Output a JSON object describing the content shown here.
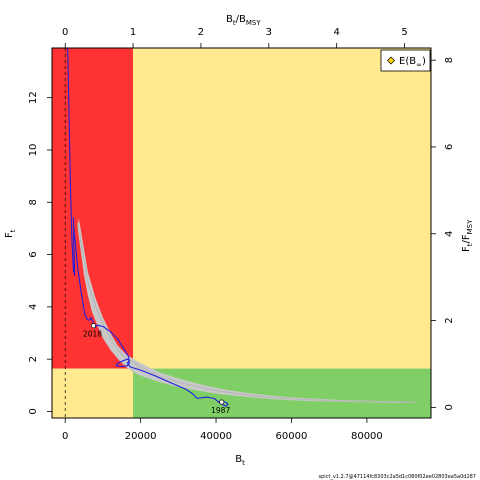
{
  "chart_data": {
    "type": "line",
    "title": "",
    "xlabel": "B",
    "xlabel_sub": "t",
    "ylabel": "F",
    "ylabel_sub": "t",
    "top_xlabel": "B",
    "top_xlabel_sub": "t",
    "top_xlabel_div": "/B",
    "top_xlabel_div_sub": "MSY",
    "right_ylabel": "F",
    "right_ylabel_sub": "t",
    "right_ylabel_div": "/F",
    "right_ylabel_div_sub": "MSY",
    "xlim": [
      -3500,
      97000
    ],
    "ylim": [
      -0.25,
      13.9
    ],
    "top_xlim": [
      -0.195,
      5.39
    ],
    "right_ylim": [
      -0.245,
      8.28
    ],
    "grid": false,
    "bmsy": 17980,
    "fmsy": 1.64,
    "x_ticks": [
      0,
      20000,
      40000,
      60000,
      80000
    ],
    "x_tick_labels": [
      "0",
      "20000",
      "40000",
      "60000",
      "80000"
    ],
    "y_ticks": [
      0,
      2,
      4,
      6,
      8,
      10,
      12
    ],
    "y_tick_labels": [
      "0",
      "2",
      "4",
      "6",
      "8",
      "10",
      "12"
    ],
    "top_x_ticks": [
      0,
      1,
      2,
      3,
      4,
      5
    ],
    "top_x_tick_labels": [
      "0",
      "1",
      "2",
      "3",
      "4",
      "5"
    ],
    "right_y_ticks": [
      0,
      2,
      4,
      6,
      8
    ],
    "right_y_tick_labels": [
      "0",
      "2",
      "4",
      "6",
      "8"
    ],
    "zones": {
      "red": "#FF3333",
      "yellow": "#FFEA8F",
      "green": "#80CF66"
    },
    "colors": {
      "trajectory": "#1F1FE0",
      "confidence_region": "#C8C8C8",
      "equilibrium_fill": "#FFD700",
      "frame": "#000000"
    },
    "equilibrium_curve": [
      [
        3300,
        7.2
      ],
      [
        6000,
        4.95
      ],
      [
        8000,
        4.05
      ],
      [
        10000,
        3.35
      ],
      [
        12000,
        2.8
      ],
      [
        14000,
        2.35
      ],
      [
        16000,
        2.05
      ],
      [
        17980,
        1.9
      ],
      [
        20000,
        1.7
      ],
      [
        25000,
        1.35
      ],
      [
        30000,
        1.12
      ],
      [
        35000,
        0.95
      ],
      [
        40000,
        0.8
      ],
      [
        45000,
        0.69
      ],
      [
        50000,
        0.6
      ],
      [
        55000,
        0.53
      ],
      [
        60000,
        0.48
      ],
      [
        65000,
        0.45
      ],
      [
        70000,
        0.42
      ],
      [
        75000,
        0.4
      ],
      [
        80000,
        0.38
      ],
      [
        85000,
        0.37
      ],
      [
        89000,
        0.36
      ],
      [
        93000,
        0.35
      ]
    ],
    "equilibrium_upper": [
      [
        3600,
        7.4
      ],
      [
        6000,
        5.35
      ],
      [
        8000,
        4.35
      ],
      [
        10000,
        3.6
      ],
      [
        12000,
        3.0
      ],
      [
        14000,
        2.5
      ],
      [
        16000,
        2.2
      ],
      [
        18000,
        2.02
      ],
      [
        20000,
        1.85
      ],
      [
        25000,
        1.5
      ],
      [
        30000,
        1.26
      ],
      [
        35000,
        1.07
      ],
      [
        40000,
        0.9
      ],
      [
        45000,
        0.78
      ],
      [
        50000,
        0.68
      ],
      [
        55000,
        0.6
      ],
      [
        60000,
        0.54
      ],
      [
        65000,
        0.5
      ],
      [
        70000,
        0.46
      ],
      [
        75000,
        0.43
      ],
      [
        80000,
        0.41
      ],
      [
        85000,
        0.39
      ],
      [
        89000,
        0.38
      ],
      [
        93000,
        0.36
      ]
    ],
    "equilibrium_lower": [
      [
        3300,
        7.0
      ],
      [
        5000,
        5.2
      ],
      [
        6000,
        4.45
      ],
      [
        7000,
        3.85
      ],
      [
        8500,
        3.3
      ],
      [
        10000,
        2.8
      ],
      [
        12000,
        2.35
      ],
      [
        14000,
        2.0
      ],
      [
        16000,
        1.72
      ],
      [
        18000,
        1.5
      ],
      [
        20000,
        1.36
      ],
      [
        25000,
        1.12
      ],
      [
        30000,
        0.93
      ],
      [
        35000,
        0.8
      ],
      [
        40000,
        0.68
      ],
      [
        45000,
        0.6
      ],
      [
        50000,
        0.53
      ],
      [
        55000,
        0.47
      ],
      [
        60000,
        0.43
      ],
      [
        65000,
        0.4
      ],
      [
        70000,
        0.38
      ],
      [
        75000,
        0.36
      ],
      [
        80000,
        0.35
      ],
      [
        85000,
        0.34
      ],
      [
        89000,
        0.33
      ],
      [
        93000,
        0.33
      ]
    ],
    "trajectory": [
      [
        40500,
        0.35
      ],
      [
        41500,
        0.38
      ],
      [
        42500,
        0.36
      ],
      [
        43200,
        0.28
      ],
      [
        42600,
        0.2
      ],
      [
        41200,
        0.3
      ],
      [
        39500,
        0.5
      ],
      [
        37500,
        0.55
      ],
      [
        35000,
        0.5
      ],
      [
        34000,
        0.65
      ],
      [
        32000,
        0.85
      ],
      [
        28000,
        1.1
      ],
      [
        24000,
        1.35
      ],
      [
        20000,
        1.58
      ],
      [
        17300,
        1.7
      ],
      [
        16500,
        1.85
      ],
      [
        17000,
        1.95
      ],
      [
        16500,
        2.0
      ],
      [
        15500,
        1.95
      ],
      [
        14000,
        1.85
      ],
      [
        13500,
        1.75
      ],
      [
        15000,
        1.72
      ],
      [
        16500,
        1.75
      ],
      [
        17000,
        1.85
      ],
      [
        16800,
        2.1
      ],
      [
        15500,
        2.4
      ],
      [
        14000,
        2.75
      ],
      [
        12000,
        3.05
      ],
      [
        10000,
        3.25
      ],
      [
        8500,
        3.3
      ],
      [
        7800,
        3.2
      ],
      [
        7300,
        3.45
      ],
      [
        6800,
        3.6
      ],
      [
        6500,
        3.5
      ],
      [
        6000,
        3.5
      ],
      [
        5200,
        3.7
      ],
      [
        4300,
        4.5
      ],
      [
        3400,
        5.4
      ],
      [
        2700,
        6.4
      ],
      [
        2200,
        7.1
      ],
      [
        2200,
        7.4
      ],
      [
        2300,
        6.3
      ],
      [
        2500,
        5.2
      ],
      [
        2200,
        5.4
      ],
      [
        1800,
        6.5
      ],
      [
        1400,
        8.5
      ],
      [
        1000,
        11.5
      ],
      [
        700,
        13.6
      ],
      [
        600,
        14.2
      ]
    ],
    "start_point": {
      "label": "1987",
      "x": 41500,
      "y": 0.36
    },
    "end_point": {
      "label": "2018",
      "x": 7500,
      "y": 3.28
    },
    "legend": {
      "position": "top-right",
      "entries": [
        "E(B",
        "∞",
        ")"
      ]
    },
    "footer": "spict_v1.2.7@47114fc8303c2a5d1c080f02ee02803ea5a0d287"
  }
}
